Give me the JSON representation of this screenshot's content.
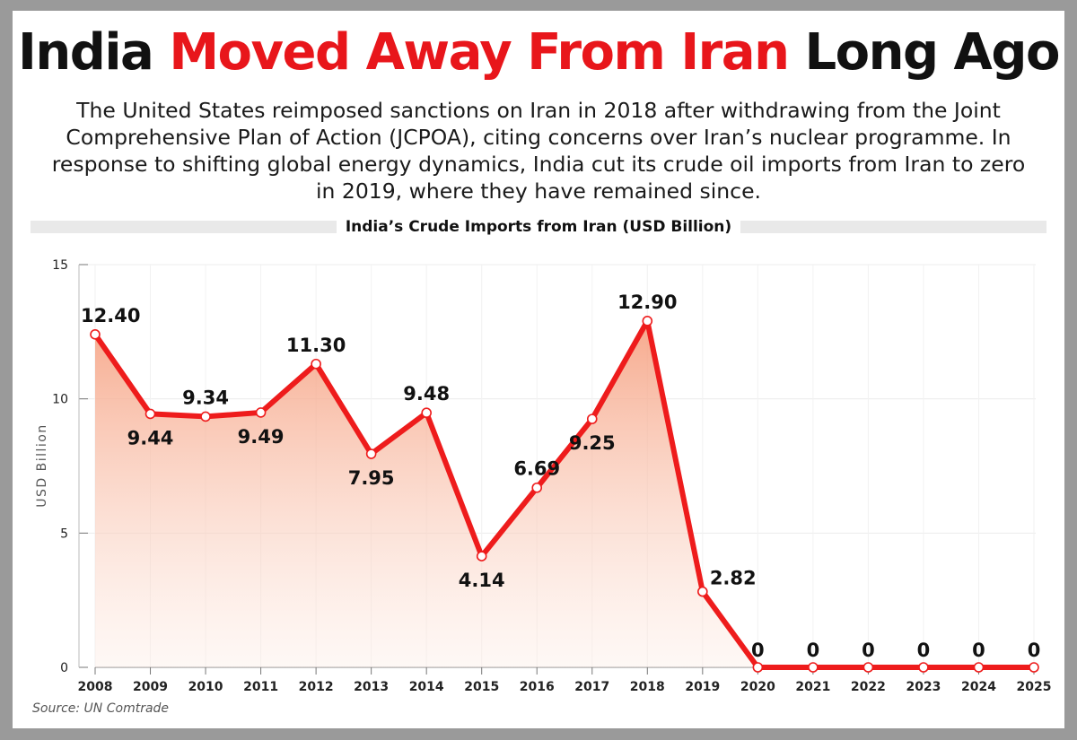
{
  "headline": {
    "part1": "India ",
    "part2": "Moved Away From Iran",
    "part3": " Long Ago"
  },
  "subtitle": "The United States reimposed sanctions on Iran in 2018 after withdrawing from the Joint Comprehensive Plan of Action (JCPOA), citing concerns over Iran’s nuclear programme. In response to shifting global energy dynamics, India cut its crude oil imports from Iran to zero in 2019, where they have remained since.",
  "source": "Source:  UN Comtrade",
  "colors": {
    "accent": "#e8161b",
    "line": "#ee1c1c",
    "fill": "#f6a585"
  },
  "chart_data": {
    "type": "line",
    "title": "India’s Crude Imports from Iran (USD Billion)",
    "ylabel": "USD Billion",
    "xlabel": "",
    "ylim": [
      0,
      15
    ],
    "yticks": [
      0,
      5,
      10,
      15
    ],
    "grid": true,
    "area_fill": true,
    "categories": [
      "2008",
      "2009",
      "2010",
      "2011",
      "2012",
      "2013",
      "2014",
      "2015",
      "2016",
      "2017",
      "2018",
      "2019",
      "2020",
      "2021",
      "2022",
      "2023",
      "2024",
      "2025"
    ],
    "values": [
      12.4,
      9.44,
      9.34,
      9.49,
      11.3,
      7.95,
      9.48,
      4.14,
      6.69,
      9.25,
      12.9,
      2.82,
      0,
      0,
      0,
      0,
      0,
      0
    ],
    "data_labels": [
      "12.40",
      "9.44",
      "9.34",
      "9.49",
      "11.30",
      "7.95",
      "9.48",
      "4.14",
      "6.69",
      "9.25",
      "12.90",
      "2.82",
      "0",
      "0",
      "0",
      "0",
      "0",
      "0"
    ]
  }
}
